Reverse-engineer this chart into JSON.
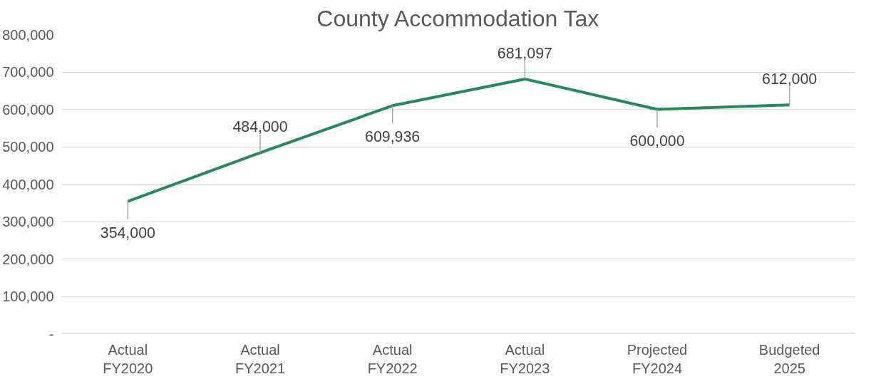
{
  "chart_data": {
    "type": "line",
    "title": "County Accommodation Tax",
    "categories": [
      "Actual\nFY2020",
      "Actual\nFY2021",
      "Actual\nFY2022",
      "Actual\nFY2023",
      "Projected\nFY2024",
      "Budgeted\n2025"
    ],
    "series": [
      {
        "color": "#25895c",
        "values": [
          354000,
          484000,
          609936,
          681097,
          600000,
          612000
        ],
        "value_labels": [
          "354,000",
          "484,000",
          "609,936",
          "681,097",
          "600,000",
          "612,000"
        ]
      }
    ],
    "ylim": [
      0,
      800000
    ],
    "yticks": [
      {
        "value": 0,
        "label": "-"
      },
      {
        "value": 100000,
        "label": "100,000"
      },
      {
        "value": 200000,
        "label": "200,000"
      },
      {
        "value": 300000,
        "label": "300,000"
      },
      {
        "value": 400000,
        "label": "400,000"
      },
      {
        "value": 500000,
        "label": "500,000"
      },
      {
        "value": 600000,
        "label": "600,000"
      },
      {
        "value": 700000,
        "label": "700,000"
      },
      {
        "value": 800000,
        "label": "800,000"
      }
    ],
    "grid": "y",
    "marker": "none",
    "line_style": "solid"
  }
}
